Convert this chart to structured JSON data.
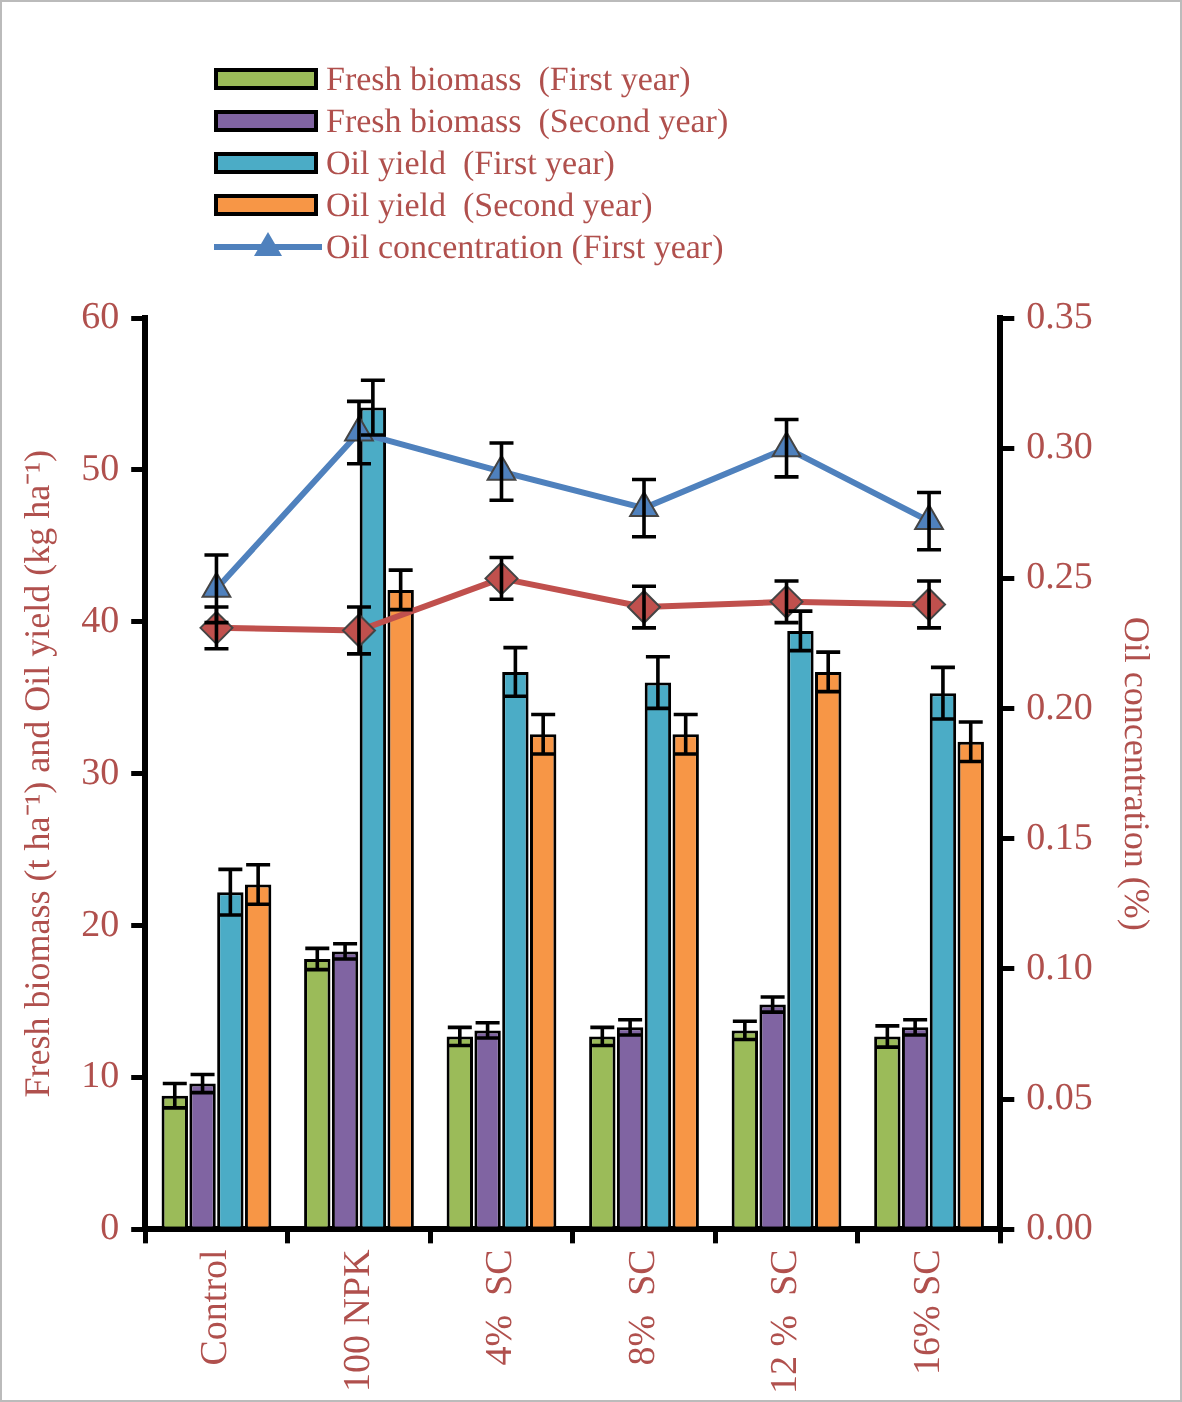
{
  "chart_data": {
    "type": "bar",
    "categories": [
      "Control",
      "100 NPK",
      "4%  SC",
      "8%  SC",
      "12 %  SC",
      "16% SC"
    ],
    "ylabel": "Fresh biomass (t ha⁻¹) and Oil yield (kg ha⁻¹)",
    "y2label": "Oil concentration (%)",
    "ylim": [
      0,
      60
    ],
    "yticks": [
      0,
      10,
      20,
      30,
      40,
      50,
      60
    ],
    "y2lim": [
      0,
      0.35
    ],
    "y2ticks": [
      {
        "value": 0,
        "label": "0.00"
      },
      0.05,
      {
        "value": 0.1,
        "label": "0.10"
      },
      0.15,
      {
        "value": 0.2,
        "label": "0.20"
      },
      0.25,
      {
        "value": 0.3,
        "label": "0.30"
      },
      0.35
    ],
    "legend": "top left",
    "series": [
      {
        "name": "Fresh biomass  (First year)",
        "color": "#9bbb59",
        "values": [
          8.8,
          17.8,
          12.7,
          12.7,
          13.1,
          12.7
        ],
        "errors": [
          0.8,
          0.7,
          0.6,
          0.6,
          0.6,
          0.7
        ]
      },
      {
        "name": "Fresh biomass  (Second year)",
        "color": "#8064a2",
        "values": [
          9.6,
          18.3,
          13.1,
          13.3,
          14.8,
          13.3
        ],
        "errors": [
          0.6,
          0.5,
          0.5,
          0.5,
          0.5,
          0.5
        ]
      },
      {
        "name": "Oil yield  (First year)",
        "color": "#4bacc6",
        "values": [
          22.2,
          54.1,
          36.7,
          36.0,
          39.4,
          35.3
        ],
        "errors": [
          1.5,
          1.8,
          1.6,
          1.7,
          1.3,
          1.7
        ]
      },
      {
        "name": "Oil yield  (Second year)",
        "color": "#f79646",
        "values": [
          22.7,
          42.1,
          32.6,
          32.6,
          36.7,
          32.1
        ],
        "errors": [
          1.3,
          1.3,
          1.3,
          1.3,
          1.3,
          1.3
        ]
      },
      {
        "name": "Oil concentration (First year)",
        "type": "line",
        "axis": "y2",
        "marker": "triangle",
        "color": "#4f81bd",
        "values": [
          0.246,
          0.306,
          0.291,
          0.277,
          0.3,
          0.272
        ],
        "errors": [
          0.013,
          0.012,
          0.011,
          0.011,
          0.011,
          0.011
        ]
      },
      {
        "type": "line",
        "axis": "y2",
        "marker": "diamond",
        "color": "#c0504d",
        "values": [
          0.231,
          0.23,
          0.25,
          0.239,
          0.241,
          0.24
        ],
        "errors": [
          0.008,
          0.009,
          0.008,
          0.008,
          0.008,
          0.009
        ]
      }
    ]
  }
}
